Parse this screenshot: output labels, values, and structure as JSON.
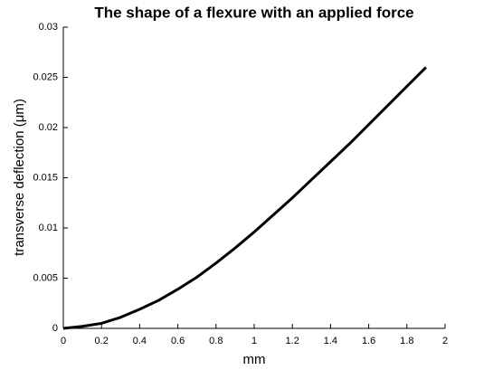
{
  "chart_data": {
    "type": "line",
    "title": "The shape of a flexure with an applied force",
    "x_label": "mm",
    "y_label": "transverse deflection (μm)",
    "x": [
      0,
      0.1,
      0.2,
      0.3,
      0.4,
      0.5,
      0.6,
      0.7,
      0.8,
      0.9,
      1.0,
      1.1,
      1.2,
      1.3,
      1.4,
      1.5,
      1.6,
      1.7,
      1.8,
      1.9
    ],
    "series": [
      {
        "color": "#000000",
        "values": [
          0,
          0.0002,
          0.0005,
          0.0011,
          0.0019,
          0.0028,
          0.0039,
          0.0051,
          0.0065,
          0.008,
          0.0096,
          0.0113,
          0.013,
          0.0148,
          0.0166,
          0.0184,
          0.0203,
          0.0222,
          0.0241,
          0.026
        ]
      }
    ],
    "xlim": [
      0,
      2
    ],
    "xticks": [
      0,
      0.2,
      0.4,
      0.6,
      0.8,
      1,
      1.2,
      1.4,
      1.6,
      1.8,
      2
    ],
    "ylim": [
      0,
      0.03
    ],
    "yticks": [
      0,
      0.005,
      0.01,
      0.015,
      0.02,
      0.025,
      0.03
    ],
    "grid": false
  }
}
